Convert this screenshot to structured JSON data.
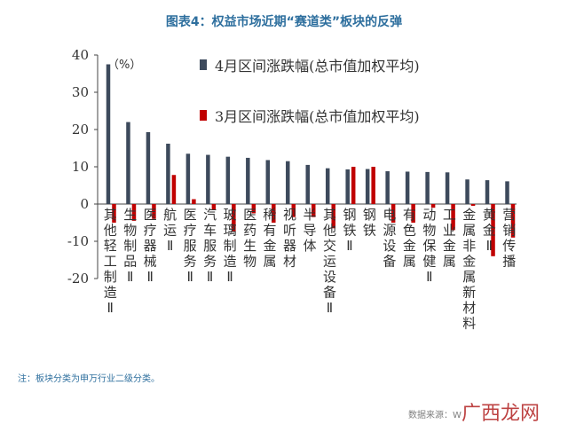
{
  "title": "图表4：权益市场近期“赛道类”板块的反弹",
  "note": "注：板块分类为申万行业二级分类。",
  "source": "数据来源：W",
  "watermark": "广西龙网",
  "colors": {
    "apr": "#3d4a5c",
    "mar": "#c00000"
  },
  "chart_data": {
    "type": "bar",
    "unit_label": "（%）",
    "ylim": [
      -20,
      40
    ],
    "yticks": [
      -20,
      -10,
      0,
      10,
      20,
      30,
      40
    ],
    "categories": [
      "其他轻工制造Ⅱ",
      "生物制品Ⅱ",
      "医疗器械Ⅱ",
      "航运Ⅱ",
      "医疗服务Ⅱ",
      "汽车服务Ⅱ",
      "玻璃制造Ⅱ",
      "医药生物",
      "稀有金属",
      "视听器材",
      "半导体",
      "其他交运设备Ⅱ",
      "钢铁Ⅱ",
      "钢铁",
      "电源设备",
      "有色金属",
      "动物保健Ⅱ",
      "工业金属",
      "金属非金属新材料",
      "黄金Ⅱ",
      "营销传播"
    ],
    "series": [
      {
        "name": "4月区间涨跌幅(总市值加权平均)",
        "values": [
          37.5,
          22,
          19.3,
          16.2,
          13.5,
          13.2,
          12.7,
          12.4,
          11.8,
          11.5,
          10.5,
          9.6,
          9.3,
          9.4,
          8.8,
          8.7,
          8.6,
          8.5,
          6.6,
          6.4,
          6.1
        ]
      },
      {
        "name": "3月区间涨跌幅(总市值加权平均)",
        "values": [
          -5,
          -4.5,
          -4,
          7.8,
          1.3,
          -1.5,
          -7.5,
          -2.5,
          -5,
          -3.5,
          -3.5,
          -6.5,
          10,
          10,
          -5,
          -5,
          -1,
          -7,
          -0.5,
          -14,
          -9
        ]
      }
    ],
    "legend_position": "top-right",
    "grid": false
  }
}
